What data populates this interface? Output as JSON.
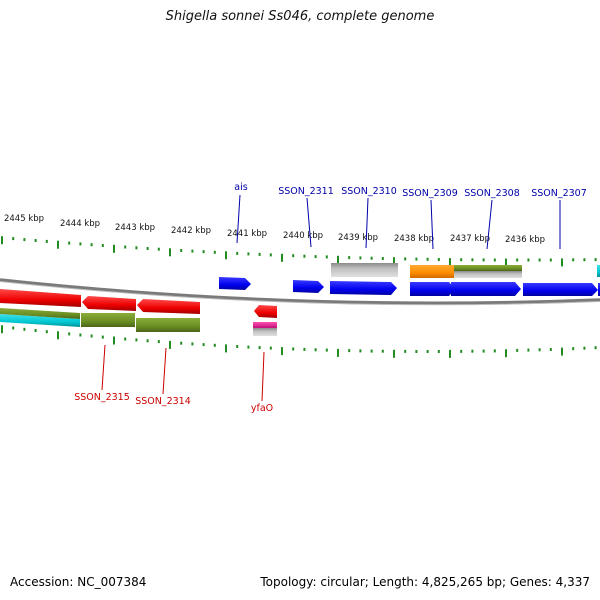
{
  "title": "Shigella sonnei Ss046, complete genome",
  "footer": {
    "accession": "Accession: NC_007384",
    "topology": "Topology: circular; Length: 4,825,265 bp; Genes: 4,337"
  },
  "kbp_labels": [
    "2445 kbp",
    "2444 kbp",
    "2443 kbp",
    "2442 kbp",
    "2441 kbp",
    "2440 kbp",
    "2439 kbp",
    "2438 kbp",
    "2437 kbp",
    "2436 kbp"
  ],
  "gene_labels_top": [
    "ais",
    "SSON_2311",
    "SSON_2310",
    "SSON_2309",
    "SSON_2308",
    "SSON_2307"
  ],
  "gene_labels_bottom": [
    "SSON_2315",
    "SSON_2314",
    "yfaO"
  ],
  "colors": {
    "forward_gene": "#0000ee",
    "reverse_gene": "#ee0000",
    "olive": "#6b8e23",
    "gray": "#b0b0b0",
    "orange": "#ff8c00",
    "cyan": "#00c8d2",
    "magenta": "#e0208c",
    "tick": "#228b22",
    "top_label": "#0000aa",
    "bottom_label": "#cc0000"
  }
}
